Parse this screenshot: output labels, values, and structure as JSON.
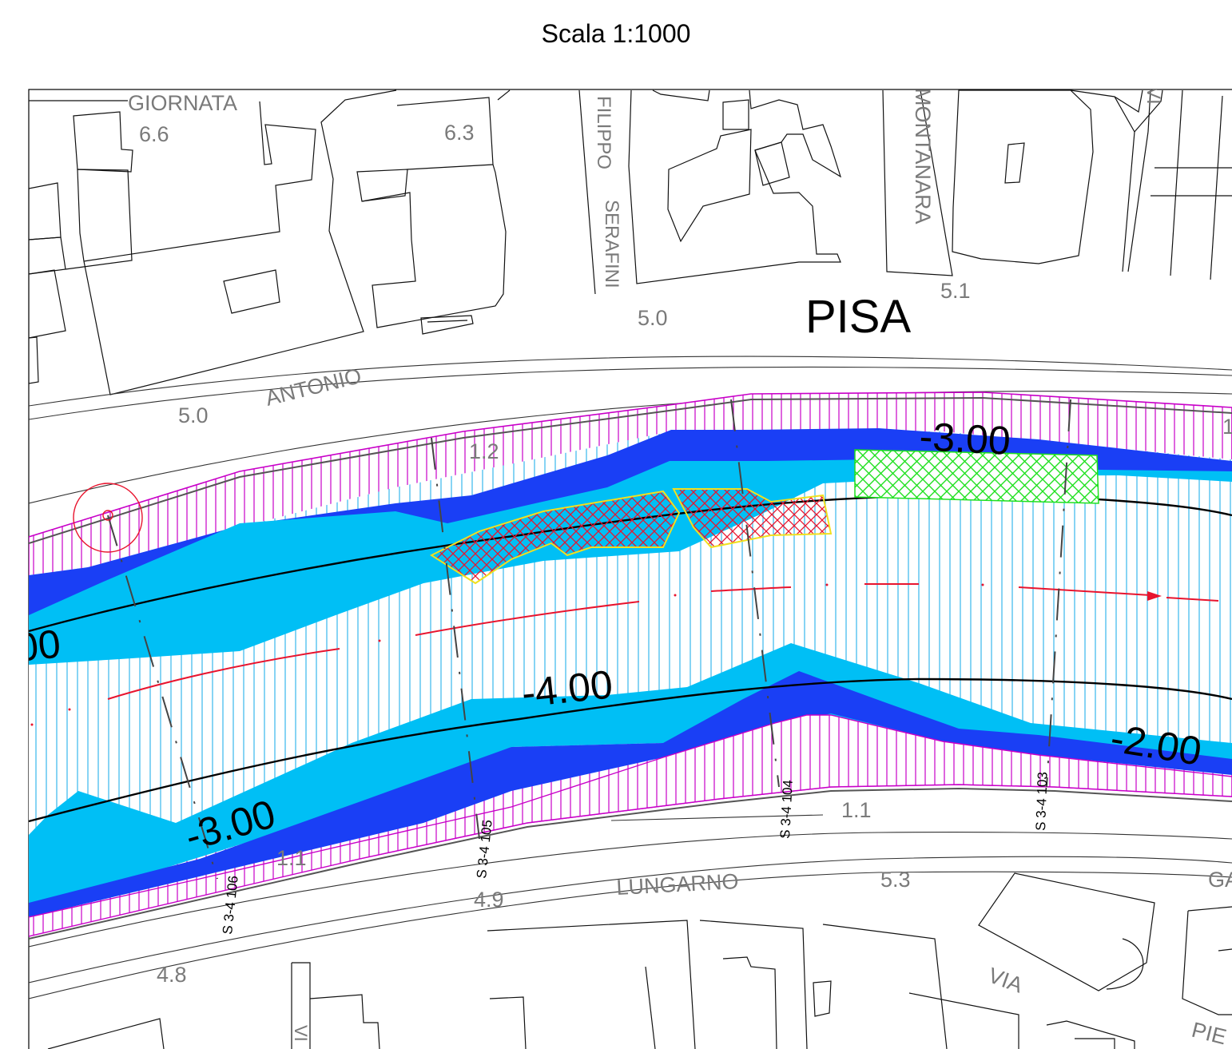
{
  "map": {
    "scale_label": "Scala 1:1000",
    "city_label": "PISA",
    "streets": {
      "giornata": "GIORNATA",
      "filippo": "FILIPPO",
      "serafini": "SERAFINI",
      "montanara": "MONTANARA",
      "antonio": "ANTONIO",
      "lungarno": "LUNGARNO",
      "via": "VIA",
      "ga": "GA",
      "pie": "PIE",
      "vi_top": "VI",
      "vi_bottom": "VI"
    },
    "elevations": {
      "e1": "6.6",
      "e2": "6.3",
      "e3": "5.1",
      "e4": "5.0",
      "e5": "5.0",
      "e6": "1.2",
      "e7": "1.1",
      "e8": "1.1",
      "e9": "5.3",
      "e10": "4.9",
      "e11": "4.8",
      "e12": "1"
    },
    "contours": {
      "c1": "-3.00",
      "c2": "-4.00",
      "c3": "-3.00",
      "c4": "-2.00",
      "c5": "00"
    },
    "sections": {
      "s1": "S 3-4 106",
      "s2": "S 3-4 105",
      "s3": "S 3-4 104",
      "s4": "S 3-4 103"
    },
    "colors": {
      "deep_water": "#1a3ff5",
      "shallow_water": "#00bff5",
      "hatch_bank": "#c800c8",
      "hatch_river": "#37b8ec",
      "red_zone": "#e8142e",
      "green_zone": "#1fe01f",
      "zone_outline": "#f0e020"
    }
  }
}
